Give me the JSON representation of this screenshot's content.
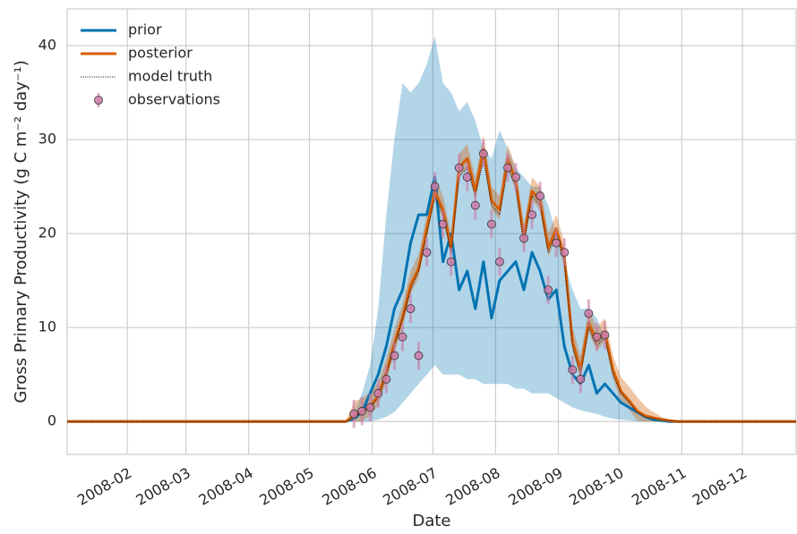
{
  "chart_data": {
    "type": "line",
    "x_label": "Date",
    "y_label": "Gross Primary Productivity (g C m⁻² day⁻¹)",
    "x": [
      1,
      140,
      144,
      148,
      152,
      156,
      160,
      164,
      168,
      172,
      176,
      180,
      184,
      188,
      192,
      196,
      200,
      204,
      208,
      212,
      216,
      220,
      224,
      228,
      232,
      236,
      240,
      244,
      248,
      252,
      256,
      260,
      264,
      268,
      272,
      276,
      280,
      284,
      288,
      292,
      296,
      300,
      304,
      366
    ],
    "xlim": [
      2.3,
      362.5
    ],
    "xticks": [
      {
        "value": 32,
        "label": "2008-02"
      },
      {
        "value": 61,
        "label": "2008-03"
      },
      {
        "value": 92,
        "label": "2008-04"
      },
      {
        "value": 122,
        "label": "2008-05"
      },
      {
        "value": 153,
        "label": "2008-06"
      },
      {
        "value": 183,
        "label": "2008-07"
      },
      {
        "value": 214,
        "label": "2008-08"
      },
      {
        "value": 245,
        "label": "2008-09"
      },
      {
        "value": 275,
        "label": "2008-10"
      },
      {
        "value": 306,
        "label": "2008-11"
      },
      {
        "value": 336,
        "label": "2008-12"
      }
    ],
    "ylim": [
      -3.5,
      43.9
    ],
    "yticks": [
      0,
      10,
      20,
      30,
      40
    ],
    "grid": true,
    "legend": "upper left",
    "series": [
      {
        "name": "prior",
        "color": "#0173b2",
        "style": "line",
        "values": [
          0,
          0,
          0.3,
          1,
          3,
          5,
          8,
          12,
          14,
          19,
          22,
          22,
          26,
          17,
          20,
          14,
          16,
          12,
          17,
          11,
          15,
          16,
          17,
          14,
          18,
          16,
          13,
          14,
          8,
          5,
          4,
          6,
          3,
          4,
          3,
          2,
          1.5,
          1,
          0.5,
          0.2,
          0.1,
          0,
          0,
          0
        ],
        "lower": [
          0,
          0,
          0,
          0,
          0,
          0.2,
          0.5,
          1,
          2,
          3,
          4,
          5,
          6,
          5,
          5,
          5,
          4.5,
          4.5,
          4,
          4,
          4,
          4,
          3.5,
          3.5,
          3,
          3,
          3,
          2.5,
          2,
          1.5,
          1.2,
          1,
          0.8,
          0.5,
          0.3,
          0.2,
          0.1,
          0,
          0,
          0,
          0,
          0,
          0,
          0
        ],
        "upper": [
          0,
          0,
          1,
          3,
          6,
          12,
          22,
          30,
          36,
          35,
          36,
          38,
          41,
          36,
          35,
          33,
          34,
          32,
          29,
          28,
          31,
          29,
          27,
          26,
          25,
          25,
          23,
          20,
          17,
          14,
          12,
          12,
          11,
          9,
          6,
          3,
          2,
          1,
          0.5,
          0.3,
          0.2,
          0,
          0,
          0
        ]
      },
      {
        "name": "posterior",
        "color": "#d55e00",
        "style": "line",
        "values": [
          0,
          0,
          0.6,
          1,
          1.6,
          2.7,
          5.2,
          8.3,
          11,
          14.5,
          16.3,
          20.5,
          24.5,
          22.5,
          18.5,
          27,
          28,
          24.5,
          29,
          23.5,
          22.5,
          28,
          25.5,
          19.5,
          24.5,
          23.5,
          18.5,
          20.5,
          17.5,
          8.5,
          5.5,
          10.5,
          8.5,
          9.5,
          5.5,
          3.2,
          2.2,
          1.1,
          0.6,
          0.4,
          0.2,
          0.1,
          0,
          0
        ],
        "lower": [
          0,
          0,
          0,
          0,
          0.6,
          1.7,
          4.2,
          7.3,
          10,
          13.5,
          15.3,
          19.5,
          23.5,
          21.5,
          17.5,
          26,
          27,
          23.5,
          28,
          22.5,
          21.5,
          27,
          24.5,
          18.5,
          23.5,
          22.5,
          17.5,
          19.5,
          16.5,
          7.5,
          4.5,
          9.5,
          7.5,
          8.5,
          4.5,
          2.2,
          1.2,
          0.1,
          0,
          0,
          0,
          0,
          0,
          0
        ],
        "upper": [
          0,
          0,
          2.1,
          2.5,
          3.1,
          4.2,
          6.7,
          9.8,
          12.5,
          16,
          17.8,
          22,
          26,
          24,
          20,
          28.5,
          29.5,
          26,
          30.5,
          25,
          24,
          29.5,
          27,
          21,
          26,
          25,
          20,
          22,
          19,
          10,
          7,
          12,
          10,
          11,
          7,
          4.7,
          3.7,
          2.6,
          1.6,
          1,
          0.5,
          0.2,
          0,
          0
        ]
      },
      {
        "name": "model truth",
        "color": "#000000",
        "style": "dotted",
        "values": [
          0,
          0,
          0.5,
          1,
          1.5,
          2.5,
          5,
          8,
          11,
          14,
          16,
          20,
          24,
          22,
          18,
          26,
          27,
          24,
          28,
          23,
          22,
          27,
          25,
          19,
          24,
          23,
          18,
          20,
          17,
          8,
          5,
          10,
          8,
          9,
          5,
          3,
          2,
          1,
          0.5,
          0.3,
          0.2,
          0.1,
          0,
          0
        ]
      },
      {
        "name": "observations",
        "color": "#cc79a7",
        "style": "points",
        "values": [
          null,
          null,
          0.8,
          1.1,
          1.5,
          3,
          4.5,
          7,
          9,
          12,
          7,
          18,
          25,
          21,
          17,
          27,
          26,
          23,
          28.5,
          21,
          17,
          27,
          26,
          19.5,
          22,
          24,
          14,
          19,
          18,
          5.5,
          4.5,
          11.5,
          9,
          9.2,
          null,
          null,
          null,
          null,
          null,
          null,
          null,
          null,
          null,
          null
        ],
        "error": [
          null,
          null,
          1.5,
          1.5,
          1.5,
          1.5,
          1.5,
          1.5,
          1.5,
          1.5,
          1.5,
          1.5,
          1.5,
          1.5,
          1.5,
          1.5,
          1.5,
          1.5,
          1.5,
          1.5,
          1.5,
          1.5,
          1.5,
          1.5,
          1.5,
          1.5,
          1.5,
          1.5,
          1.5,
          1.5,
          1.5,
          1.5,
          1.5,
          1.5,
          null,
          null,
          null,
          null,
          null,
          null,
          null,
          null,
          null,
          null
        ]
      }
    ]
  }
}
